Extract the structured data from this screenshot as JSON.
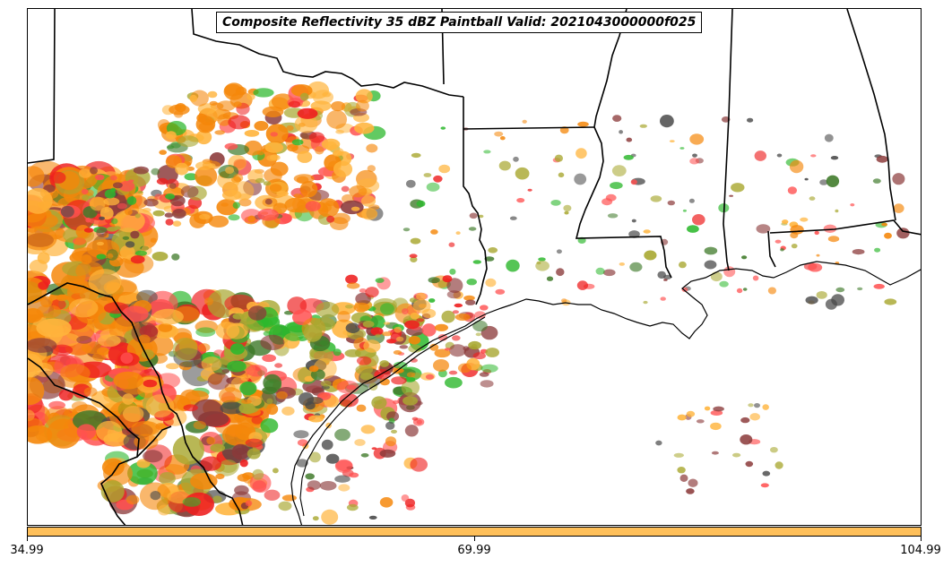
{
  "title": "Composite Reflectivity 35 dBZ Paintball Valid: 2021043000000f025",
  "colorbar": {
    "color": "#ffc05a",
    "ticks": [
      "34.99",
      "69.99",
      "104.99"
    ]
  },
  "palette": {
    "orange": "#f5870a",
    "light_orange": "#ffb43c",
    "red": "#ee1f1f",
    "pink_red": "#ff5050",
    "maroon": "#8b3a3a",
    "olive": "#a9a832",
    "green": "#2db82d",
    "dark_green": "#3f7a2a",
    "dark_gray": "#4a4a4a"
  }
}
